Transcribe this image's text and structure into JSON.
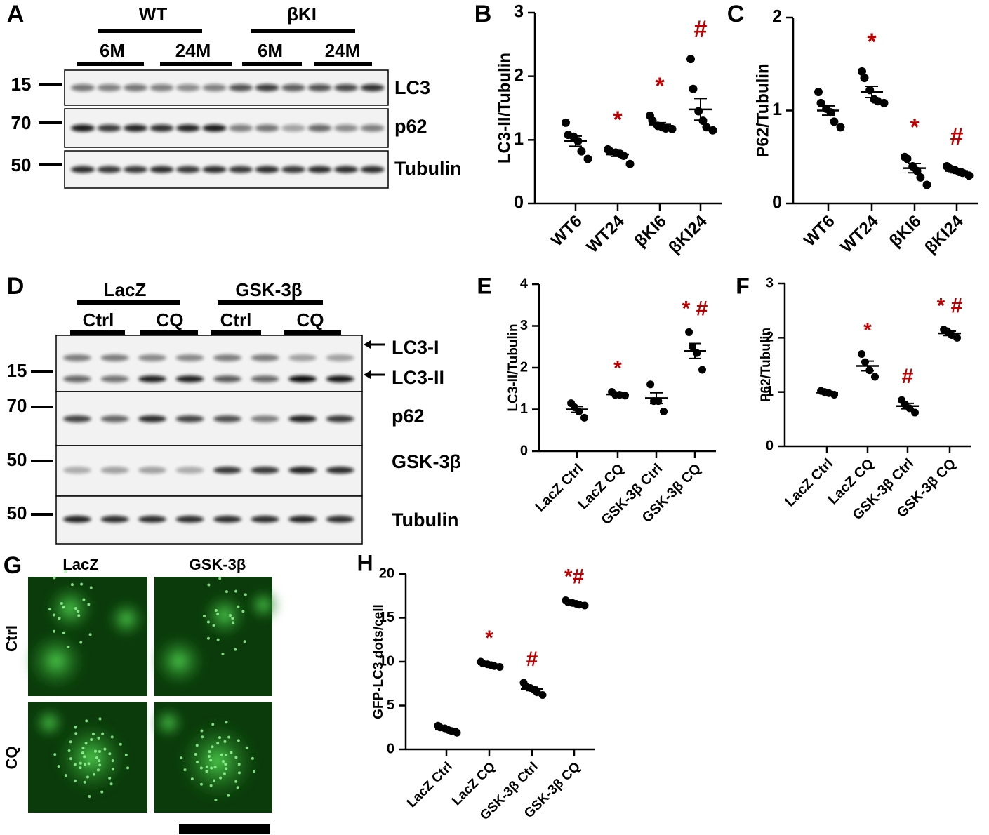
{
  "panels": {
    "A": {
      "letter": "A",
      "groups": [
        "WT",
        "βKI"
      ],
      "subgroups": [
        "6M",
        "24M",
        "6M",
        "24M"
      ],
      "markers": [
        15,
        70,
        50
      ],
      "bands": [
        "LC3",
        "p62",
        "Tubulin"
      ]
    },
    "D": {
      "letter": "D",
      "groups": [
        "LacZ",
        "GSK-3β"
      ],
      "subgroups": [
        "Ctrl",
        "CQ",
        "Ctrl",
        "CQ"
      ],
      "markers": [
        15,
        70,
        50,
        50
      ],
      "bands": [
        "LC3-I",
        "LC3-II",
        "p62",
        "GSK-3β",
        "Tubulin"
      ]
    },
    "G": {
      "letter": "G",
      "columns": [
        "LacZ",
        "GSK-3β"
      ],
      "rows": [
        "Ctrl",
        "CQ"
      ]
    }
  },
  "chart_data": [
    {
      "type": "dotplot",
      "label": "B",
      "y_label": "LC3-II/Tubulin",
      "categories": [
        "WT6",
        "WT24",
        "βKI6",
        "βKI24"
      ],
      "values": [
        [
          1.27,
          1.08,
          1.05,
          0.98,
          0.82,
          0.7
        ],
        [
          0.85,
          0.82,
          0.8,
          0.78,
          0.75,
          0.62
        ],
        [
          1.38,
          1.3,
          1.22,
          1.2,
          1.18,
          1.17
        ],
        [
          2.27,
          1.8,
          1.45,
          1.3,
          1.2,
          1.15
        ]
      ],
      "means": [
        0.98,
        0.77,
        1.24,
        1.48
      ],
      "errors": [
        0.08,
        0.03,
        0.03,
        0.17
      ],
      "annotations": [
        null,
        "*",
        "*",
        "#"
      ],
      "annotation_color": "#c00000",
      "color": "#000000",
      "ylim": [
        0,
        3
      ],
      "yticks": [
        0,
        1,
        2,
        3
      ]
    },
    {
      "type": "dotplot",
      "label": "C",
      "y_label": "P62/Tubulin",
      "categories": [
        "WT6",
        "WT24",
        "βKI6",
        "βKI24"
      ],
      "values": [
        [
          1.2,
          1.08,
          1.02,
          0.98,
          0.88,
          0.82
        ],
        [
          1.42,
          1.35,
          1.22,
          1.12,
          1.1,
          1.08
        ],
        [
          0.5,
          0.48,
          0.4,
          0.35,
          0.28,
          0.2
        ],
        [
          0.4,
          0.38,
          0.36,
          0.34,
          0.33,
          0.3
        ]
      ],
      "means": [
        1.0,
        1.2,
        0.38,
        0.35
      ],
      "errors": [
        0.05,
        0.06,
        0.05,
        0.02
      ],
      "annotations": [
        null,
        "*",
        "*",
        "#"
      ],
      "annotation_color": "#c00000",
      "color": "#000000",
      "ylim": [
        0,
        2
      ],
      "yticks": [
        0,
        1,
        2
      ]
    },
    {
      "type": "dotplot",
      "label": "E",
      "y_label": "LC3-II/Tubulin",
      "categories": [
        "LacZ Ctrl",
        "LacZ CQ",
        "GSK-3β Ctrl",
        "GSK-3β CQ"
      ],
      "values": [
        [
          1.15,
          1.05,
          0.95,
          0.8
        ],
        [
          1.42,
          1.35,
          1.35,
          1.33
        ],
        [
          1.6,
          1.2,
          1.2,
          0.95
        ],
        [
          2.85,
          2.5,
          2.35,
          1.95
        ]
      ],
      "means": [
        1.0,
        1.36,
        1.27,
        2.4
      ],
      "errors": [
        0.07,
        0.03,
        0.13,
        0.18
      ],
      "annotations": [
        null,
        "*",
        null,
        "* #"
      ],
      "annotation_color": "#c00000",
      "color": "#000000",
      "ylim": [
        0,
        4
      ],
      "yticks": [
        0,
        1,
        2,
        3,
        4
      ]
    },
    {
      "type": "dotplot",
      "label": "F",
      "y_label": "P62/Tubulin",
      "categories": [
        "LacZ Ctrl",
        "LacZ CQ",
        "GSK-3β Ctrl",
        "GSK-3β CQ"
      ],
      "values": [
        [
          1.02,
          1.0,
          0.98,
          0.95
        ],
        [
          1.7,
          1.55,
          1.4,
          1.28
        ],
        [
          0.85,
          0.77,
          0.7,
          0.62
        ],
        [
          2.15,
          2.12,
          2.05,
          2.0
        ]
      ],
      "means": [
        0.99,
        1.48,
        0.74,
        2.08
      ],
      "errors": [
        0.02,
        0.09,
        0.05,
        0.04
      ],
      "annotations": [
        null,
        "*",
        "#",
        "* #"
      ],
      "annotation_color": "#c00000",
      "color": "#000000",
      "ylim": [
        0,
        3
      ],
      "yticks": [
        0,
        1,
        2,
        3
      ]
    },
    {
      "type": "dotplot",
      "label": "H",
      "y_label": "GFP-LC3 dots/cell",
      "categories": [
        "LacZ Ctrl",
        "LacZ CQ",
        "GSK-3β Ctrl",
        "GSK-3β CQ"
      ],
      "values": [
        [
          2.7,
          2.5,
          2.4,
          2.2,
          2.1,
          1.9
        ],
        [
          10.0,
          9.8,
          9.7,
          9.6,
          9.5,
          9.4
        ],
        [
          7.6,
          7.2,
          7.0,
          6.8,
          6.5,
          6.2
        ],
        [
          17.0,
          16.8,
          16.7,
          16.6,
          16.5,
          16.4
        ]
      ],
      "means": [
        2.3,
        9.7,
        6.9,
        16.7
      ],
      "errors": [
        0.1,
        0.1,
        0.2,
        0.1
      ],
      "annotations": [
        null,
        "*",
        "#",
        "*#"
      ],
      "annotation_color": "#c00000",
      "color": "#000000",
      "ylim": [
        0,
        20
      ],
      "yticks": [
        0,
        5,
        10,
        15,
        20
      ]
    }
  ]
}
